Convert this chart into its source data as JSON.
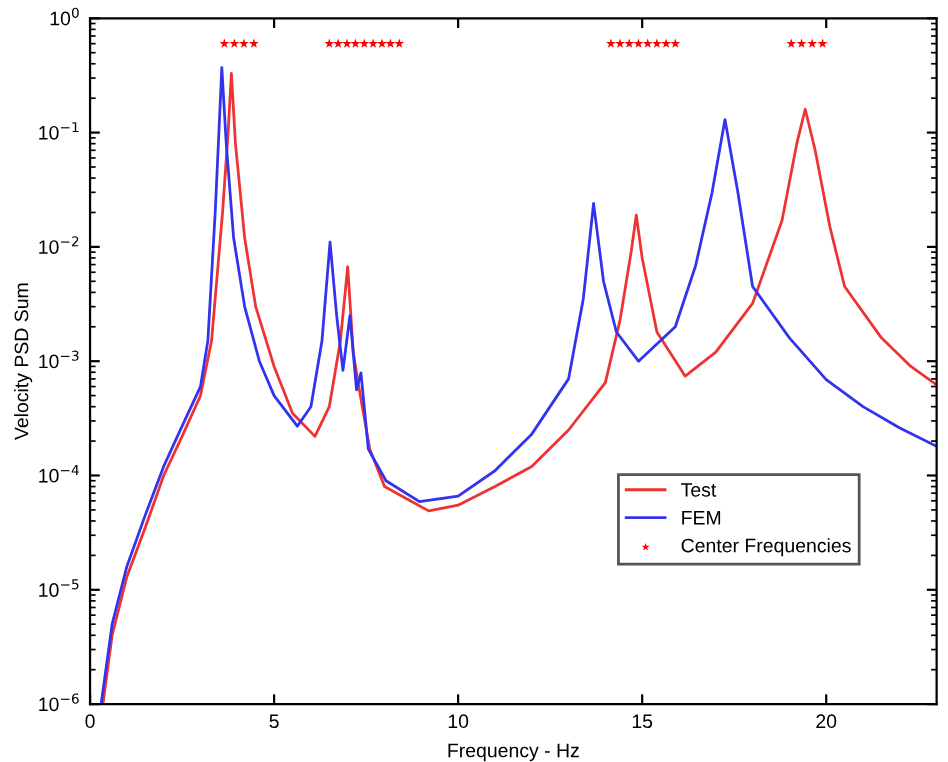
{
  "chart_data": {
    "type": "line",
    "xlabel": "Frequency - Hz",
    "ylabel": "Velocity PSD Sum",
    "log": "y",
    "xlim": [
      0,
      23
    ],
    "ylim": [
      1e-06,
      1
    ],
    "xticks": [
      0,
      5,
      10,
      15,
      20
    ],
    "yticks": [
      {
        "value": 1e-06,
        "label": "10$^{−6}$"
      },
      {
        "value": 1e-05,
        "label": "10$^{−5}$"
      },
      {
        "value": 0.0001,
        "label": "10$^{−4}$"
      },
      {
        "value": 0.001,
        "label": "10$^{−3}$"
      },
      {
        "value": 0.01,
        "label": "10$^{−2}$"
      },
      {
        "value": 0.1,
        "label": "10$^{−1}$"
      },
      {
        "value": 1,
        "label": "10$^{0}$"
      }
    ],
    "legend": "bottom right",
    "grid": false,
    "series": [
      {
        "name": "Test",
        "color": "#ee3333",
        "x": [
          0.35,
          0.6,
          1,
          1.5,
          2,
          2.5,
          3,
          3.3,
          3.6,
          3.75,
          3.84,
          3.95,
          4.2,
          4.5,
          5,
          5.5,
          6.11,
          6.5,
          6.8,
          7.0,
          7.15,
          7.3,
          7.6,
          8,
          9.2,
          10,
          11,
          12,
          13,
          14,
          14.4,
          14.7,
          14.84,
          15.0,
          15.4,
          16.17,
          17,
          18,
          18.8,
          19.2,
          19.43,
          19.7,
          20.1,
          20.5,
          21.5,
          22.3,
          23
        ],
        "values": [
          1e-06,
          4e-06,
          1.3e-05,
          3.5e-05,
          0.0001,
          0.00022,
          0.0005,
          0.0015,
          0.02,
          0.1,
          0.33,
          0.08,
          0.012,
          0.003,
          0.0009,
          0.00035,
          0.00022,
          0.0004,
          0.0015,
          0.0067,
          0.0012,
          0.0006,
          0.00017,
          8e-05,
          4.9e-05,
          5.5e-05,
          8e-05,
          0.00012,
          0.00025,
          0.00065,
          0.0023,
          0.009,
          0.019,
          0.008,
          0.0018,
          0.00074,
          0.0012,
          0.0032,
          0.017,
          0.08,
          0.16,
          0.07,
          0.015,
          0.0045,
          0.0016,
          0.0009,
          0.00062
        ]
      },
      {
        "name": "FEM",
        "color": "#3333ee",
        "x": [
          0.3,
          0.6,
          1,
          1.5,
          2,
          2.5,
          3,
          3.2,
          3.4,
          3.5,
          3.58,
          3.7,
          3.9,
          4.2,
          4.6,
          5.0,
          5.63,
          6.0,
          6.3,
          6.52,
          6.7,
          6.87,
          7.06,
          7.24,
          7.36,
          7.56,
          8.04,
          8.95,
          10,
          11,
          12,
          13,
          13.4,
          13.68,
          13.95,
          14.3,
          14.9,
          15.9,
          16.45,
          16.9,
          17.25,
          17.6,
          18,
          19,
          20,
          21,
          22,
          23
        ],
        "values": [
          1e-06,
          5e-06,
          1.6e-05,
          4.5e-05,
          0.00012,
          0.00027,
          0.0006,
          0.0015,
          0.02,
          0.1,
          0.37,
          0.08,
          0.012,
          0.003,
          0.001,
          0.0005,
          0.00027,
          0.0004,
          0.0015,
          0.011,
          0.0025,
          0.00083,
          0.0025,
          0.00056,
          0.00079,
          0.00017,
          9e-05,
          5.9e-05,
          6.6e-05,
          0.00011,
          0.00023,
          0.0007,
          0.0035,
          0.024,
          0.005,
          0.0018,
          0.001,
          0.002,
          0.0068,
          0.03,
          0.13,
          0.03,
          0.0045,
          0.0016,
          0.00069,
          0.0004,
          0.00026,
          0.00018
        ]
      },
      {
        "name": "Center Frequencies",
        "color": "#ff0000",
        "type": "scatter",
        "marker": "star",
        "x": [
          3.65,
          3.92,
          4.18,
          4.45,
          6.5,
          6.74,
          6.98,
          7.21,
          7.45,
          7.69,
          7.93,
          8.16,
          8.4,
          14.15,
          14.4,
          14.65,
          14.9,
          15.15,
          15.4,
          15.65,
          15.9,
          19.05,
          19.33,
          19.62,
          19.9
        ],
        "values": [
          0.6,
          0.6,
          0.6,
          0.6,
          0.6,
          0.6,
          0.6,
          0.6,
          0.6,
          0.6,
          0.6,
          0.6,
          0.6,
          0.6,
          0.6,
          0.6,
          0.6,
          0.6,
          0.6,
          0.6,
          0.6,
          0.6,
          0.6,
          0.6,
          0.6
        ]
      }
    ]
  }
}
